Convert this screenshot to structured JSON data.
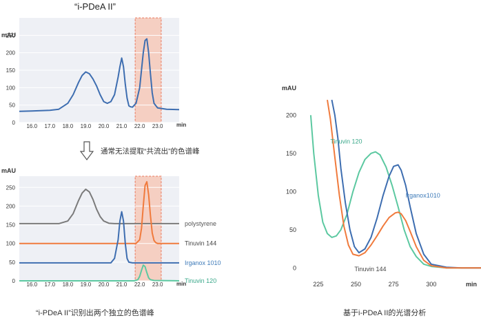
{
  "top_title": "“i-PDeA II”",
  "arrow_caption": "通常无法提取“共流出”的色谱峰",
  "bottom_left_caption": "“i-PDeA II”识别出两个独立的色谱峰",
  "bottom_right_caption": "基于i-PDeA II的光谱分析",
  "colors": {
    "blue": "#3d6db0",
    "orange": "#f07a3c",
    "gray": "#7a7a7a",
    "green": "#5bc8a0",
    "highlight_fill": "#f6c7b5",
    "highlight_border": "#e9765a",
    "panel_bg": "#eef0f5"
  },
  "chart_data": [
    {
      "id": "top-chromatogram",
      "type": "line",
      "ylabel": "mAU",
      "xlabel": "min",
      "xlim": [
        15.3,
        24.2
      ],
      "ylim": [
        0,
        300
      ],
      "xticks": [
        "16.0",
        "17.0",
        "18.0",
        "19.0",
        "20.0",
        "21.0",
        "22.0",
        "23.0"
      ],
      "yticks": [
        "0",
        "50",
        "100",
        "150",
        "200",
        "250"
      ],
      "highlight_range": [
        21.75,
        23.2
      ],
      "series": [
        {
          "color": "#3d6db0",
          "x": [
            15.3,
            16.0,
            16.5,
            17.0,
            17.5,
            18.0,
            18.3,
            18.6,
            18.8,
            19.0,
            19.2,
            19.4,
            19.6,
            19.8,
            20.0,
            20.2,
            20.4,
            20.6,
            20.8,
            20.9,
            21.0,
            21.1,
            21.2,
            21.3,
            21.4,
            21.5,
            21.6,
            21.8,
            22.0,
            22.1,
            22.2,
            22.3,
            22.4,
            22.5,
            22.6,
            22.7,
            22.8,
            23.0,
            23.5,
            24.2
          ],
          "y": [
            32,
            33,
            34,
            35,
            38,
            55,
            80,
            115,
            135,
            145,
            140,
            125,
            105,
            80,
            60,
            55,
            60,
            80,
            130,
            160,
            185,
            160,
            110,
            70,
            48,
            45,
            44,
            55,
            100,
            150,
            200,
            235,
            240,
            200,
            140,
            85,
            55,
            42,
            38,
            37
          ]
        }
      ]
    },
    {
      "id": "bottom-chromatogram",
      "type": "line",
      "ylabel": "mAU",
      "xlabel": "min",
      "xlim": [
        15.3,
        24.2
      ],
      "ylim": [
        0,
        280
      ],
      "xticks": [
        "16.0",
        "17.0",
        "18.0",
        "19.0",
        "20.0",
        "21.0",
        "22.0",
        "23.0"
      ],
      "yticks": [
        "0",
        "50",
        "100",
        "150",
        "200",
        "250"
      ],
      "highlight_range": [
        21.75,
        23.2
      ],
      "series": [
        {
          "name": "polystyrene",
          "color": "#7a7a7a",
          "x": [
            15.3,
            17.5,
            18.0,
            18.3,
            18.6,
            18.8,
            19.0,
            19.2,
            19.4,
            19.6,
            19.8,
            20.0,
            20.3,
            20.6,
            24.2
          ],
          "y": [
            153,
            153,
            160,
            180,
            215,
            235,
            245,
            238,
            218,
            192,
            172,
            160,
            154,
            153,
            153
          ]
        },
        {
          "name": "Tinuvin 144",
          "color": "#f07a3c",
          "x": [
            15.3,
            21.8,
            22.0,
            22.1,
            22.2,
            22.3,
            22.4,
            22.5,
            22.6,
            22.7,
            22.8,
            22.9,
            23.0,
            24.2
          ],
          "y": [
            100,
            100,
            110,
            140,
            200,
            255,
            265,
            230,
            175,
            128,
            108,
            102,
            100,
            100
          ]
        },
        {
          "name": "Irganox 1010",
          "color": "#3d6db0",
          "x": [
            15.3,
            20.4,
            20.6,
            20.8,
            20.9,
            21.0,
            21.1,
            21.2,
            21.3,
            21.4,
            21.6,
            24.2
          ],
          "y": [
            48,
            48,
            60,
            110,
            160,
            185,
            160,
            100,
            60,
            50,
            48,
            48
          ]
        },
        {
          "name": "Tinuvin 120",
          "color": "#5bc8a0",
          "x": [
            15.3,
            21.7,
            21.9,
            22.0,
            22.1,
            22.2,
            22.3,
            22.4,
            22.5,
            22.6,
            22.8,
            24.2
          ],
          "y": [
            0,
            0,
            3,
            12,
            28,
            42,
            38,
            22,
            8,
            3,
            1,
            0
          ]
        }
      ]
    },
    {
      "id": "uv-spectrum",
      "type": "line",
      "ylabel": "mAU",
      "xlabel": "min",
      "xlim": [
        215,
        333
      ],
      "ylim": [
        -15,
        230
      ],
      "xticks": [
        "225",
        "250",
        "275",
        "300"
      ],
      "yticks": [
        "0",
        "50",
        "100",
        "150",
        "200"
      ],
      "series": [
        {
          "name": "Tinuvin 120",
          "color": "#5bc8a0",
          "x": [
            220,
            222,
            225,
            228,
            231,
            234,
            237,
            240,
            244,
            248,
            252,
            256,
            260,
            263,
            266,
            270,
            274,
            278,
            282,
            286,
            290,
            295,
            300,
            310,
            320,
            333
          ],
          "y": [
            200,
            150,
            95,
            60,
            45,
            40,
            42,
            50,
            70,
            100,
            125,
            142,
            150,
            152,
            148,
            132,
            108,
            80,
            50,
            28,
            15,
            5,
            2,
            0,
            0,
            0
          ]
        },
        {
          "name": "Irganox1010",
          "color": "#3d6db0",
          "x": [
            234,
            236,
            238,
            240,
            243,
            246,
            249,
            252,
            256,
            260,
            264,
            268,
            272,
            275,
            278,
            280,
            283,
            286,
            290,
            295,
            300,
            310,
            320,
            333
          ],
          "y": [
            220,
            200,
            170,
            130,
            85,
            50,
            28,
            20,
            25,
            40,
            65,
            95,
            120,
            133,
            135,
            128,
            108,
            80,
            45,
            18,
            5,
            1,
            0,
            0
          ]
        },
        {
          "name": "Tinuvin 144",
          "color": "#f07a3c",
          "x": [
            231,
            233,
            236,
            239,
            242,
            245,
            248,
            252,
            256,
            260,
            264,
            268,
            272,
            276,
            278,
            280,
            283,
            286,
            290,
            295,
            300,
            310,
            320,
            333
          ],
          "y": [
            220,
            195,
            145,
            95,
            55,
            30,
            18,
            16,
            20,
            30,
            42,
            55,
            66,
            72,
            73,
            71,
            62,
            48,
            28,
            10,
            3,
            0,
            0,
            0
          ]
        }
      ]
    }
  ]
}
